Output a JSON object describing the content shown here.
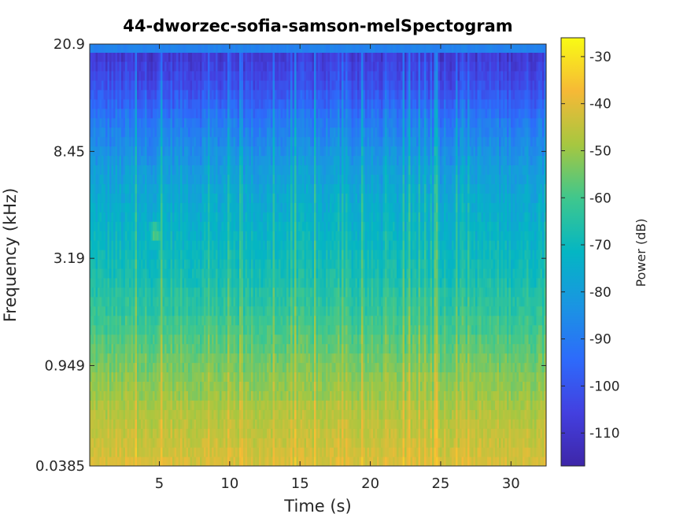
{
  "chart_data": {
    "type": "heatmap",
    "title": "44-dworzec-sofia-samson-melSpectogram",
    "xlabel": "Time (s)",
    "ylabel": "Frequency (kHz)",
    "colorbar_label": "Power (dB)",
    "xlim": [
      0.05,
      32.5
    ],
    "x_ticks": [
      5,
      10,
      15,
      20,
      25,
      30
    ],
    "y_tick_labels": [
      "20.9",
      "8.45",
      "3.19",
      "0.949",
      "0.0385"
    ],
    "y_tick_values_khz": [
      20.9,
      8.45,
      3.19,
      0.949,
      0.0385
    ],
    "colorbar_range": [
      -117,
      -26
    ],
    "colorbar_ticks": [
      -30,
      -40,
      -50,
      -60,
      -70,
      -80,
      -90,
      -100,
      -110
    ],
    "colormap": "parula",
    "mel_band_profile_db": [
      -42,
      -43,
      -44,
      -45,
      -46,
      -47,
      -48,
      -50,
      -51,
      -52,
      -54,
      -55,
      -57,
      -58,
      -60,
      -61,
      -63,
      -64,
      -65,
      -67,
      -68,
      -69,
      -70,
      -71,
      -72,
      -73,
      -74,
      -75,
      -76,
      -77,
      -79,
      -80,
      -82,
      -84,
      -86,
      -88,
      -90,
      -93,
      -96,
      -99,
      -102,
      -104,
      -106,
      -108
    ],
    "top_band_db": -88,
    "note_events": [
      {
        "time_s": 4.6,
        "freq_khz": 4.3,
        "power_db": -45
      }
    ]
  }
}
